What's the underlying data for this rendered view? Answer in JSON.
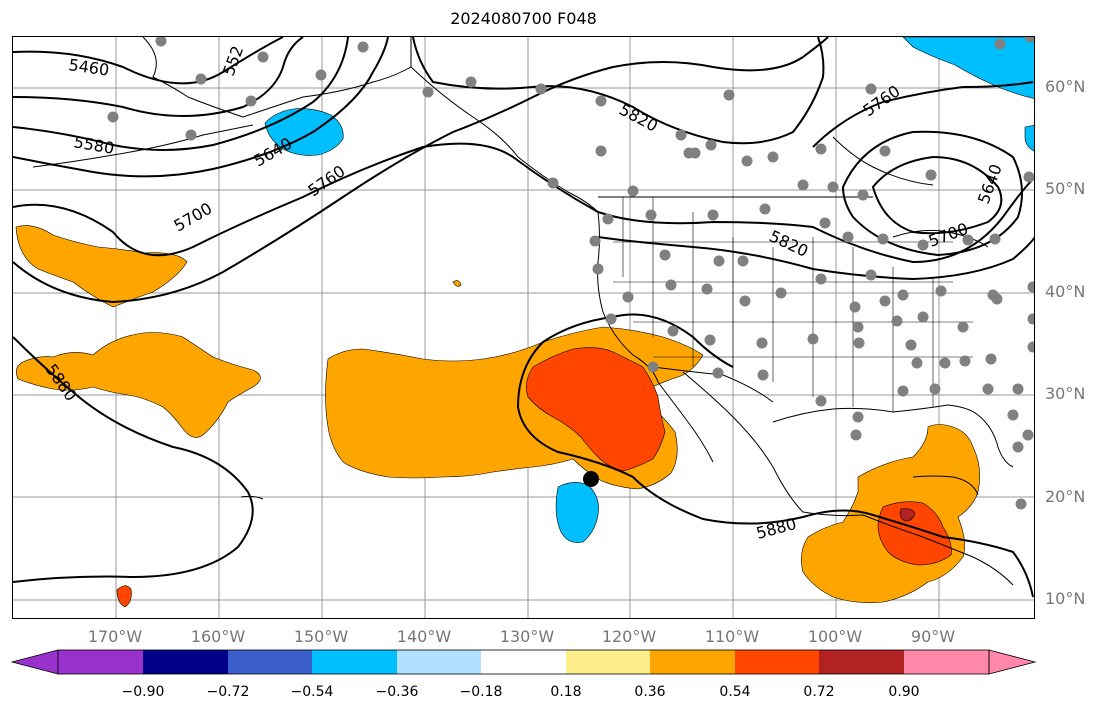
{
  "title": "2024080700 F048",
  "lat_labels": [
    "60°N",
    "50°N",
    "40°N",
    "30°N",
    "20°N",
    "10°N"
  ],
  "lon_labels": [
    "170°W",
    "160°W",
    "150°W",
    "140°W",
    "130°W",
    "120°W",
    "110°W",
    "100°W",
    "90°W"
  ],
  "contour_labels": [
    "5460",
    "552",
    "5580",
    "5640",
    "5760",
    "5700",
    "5820",
    "5760",
    "5640",
    "5700",
    "5820",
    "5880",
    "5880"
  ],
  "colorbar": {
    "ticks": [
      "−0.90",
      "−0.72",
      "−0.54",
      "−0.36",
      "−0.18",
      "0.18",
      "0.36",
      "0.54",
      "0.72",
      "0.90"
    ],
    "colors": [
      "#9932cc",
      "#00008b",
      "#3a5fcd",
      "#00bfff",
      "#b0e2ff",
      "#ffffff",
      "#ffec8b",
      "#ffa500",
      "#ff4500",
      "#b22222",
      "#ff88aa"
    ]
  },
  "colors": {
    "anomaly_orange": "#ffa500",
    "anomaly_red": "#ff4500",
    "anomaly_darkred": "#b22222",
    "anomaly_blue": "#00bfff",
    "station_gray": "#808080"
  }
}
